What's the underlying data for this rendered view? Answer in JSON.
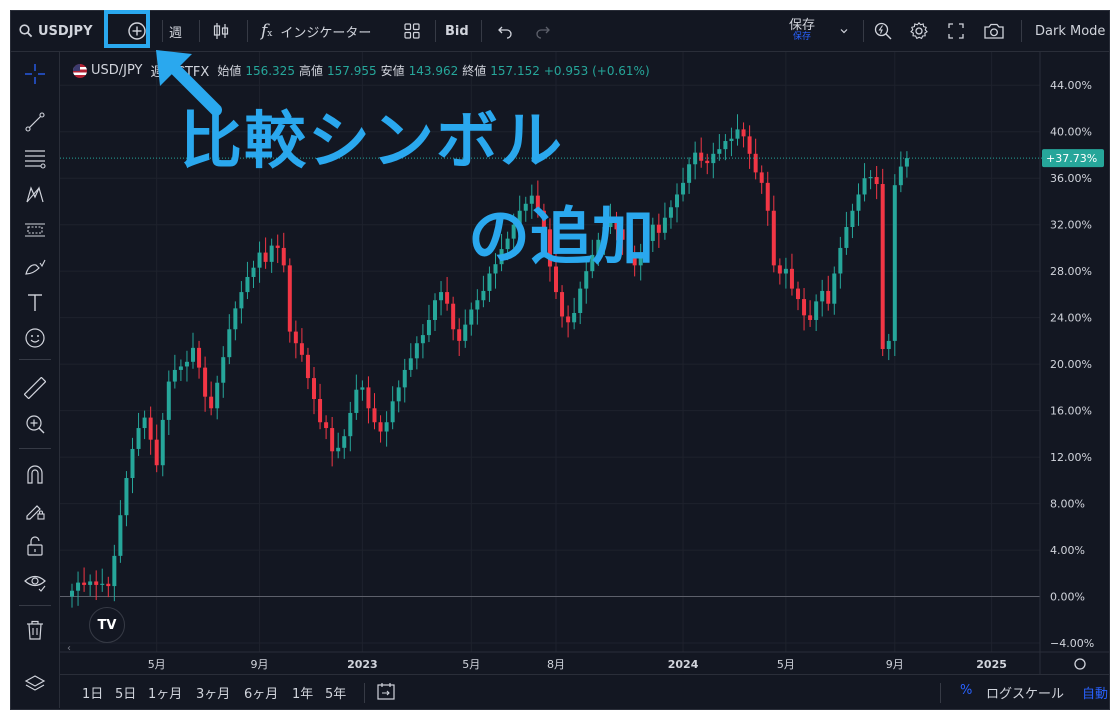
{
  "toolbar": {
    "symbol": "USDJPY",
    "interval": "週",
    "indicators_label": "インジケーター",
    "price_source": "Bid",
    "save_label": "保存",
    "save_sub": "保存",
    "theme_label": "Dark Mode"
  },
  "legend": {
    "symbol": "USD/JPY",
    "suffix": "週 · CTFX",
    "open_label": "始値",
    "open": "156.325",
    "high_label": "高値",
    "high": "157.955",
    "low_label": "安値",
    "low": "143.962",
    "close_label": "終値",
    "close": "157.152",
    "change": "+0.953 (+0.61%)"
  },
  "overlay": {
    "title": "比較シンボル",
    "subtitle": "の追加"
  },
  "bottom": {
    "ranges": [
      "1日",
      "5日",
      "1ヶ月",
      "3ヶ月",
      "6ヶ月",
      "1年",
      "5年"
    ],
    "percent": "%",
    "log_scale": "ログスケール",
    "auto": "自動"
  },
  "chart_data": {
    "type": "candlestick",
    "y_tick_labels": [
      "44.00%",
      "40.00%",
      "36.00%",
      "32.00%",
      "28.00%",
      "24.00%",
      "20.00%",
      "16.00%",
      "12.00%",
      "8.00%",
      "4.00%",
      "0.00%",
      "−4.00%"
    ],
    "y_ticks": [
      44,
      40,
      36,
      32,
      28,
      24,
      20,
      16,
      12,
      8,
      4,
      0,
      -4
    ],
    "ylim": [
      -4.6,
      46
    ],
    "x_tick_labels": [
      "5月",
      "9月",
      "2023",
      "5月",
      "8月",
      "2024",
      "5月",
      "9月",
      "2025"
    ],
    "x_tick_index": [
      14,
      31,
      48,
      66,
      80,
      101,
      118,
      136,
      152
    ],
    "last_value_label": "+37.73%",
    "last_value": 37.73,
    "up_color": "#26a69a",
    "down_color": "#f23645",
    "closes": [
      0.5,
      1.2,
      1.0,
      1.3,
      1.0,
      1.1,
      0.9,
      3.5,
      7.0,
      10.2,
      12.7,
      14.5,
      15.4,
      13.5,
      11.3,
      15.2,
      18.5,
      19.5,
      19.8,
      20.2,
      21.4,
      19.7,
      17.2,
      16.2,
      18.4,
      20.6,
      23.0,
      24.8,
      26.2,
      27.5,
      28.3,
      29.6,
      28.8,
      30.2,
      30.0,
      28.5,
      22.8,
      21.8,
      20.8,
      18.8,
      17.0,
      15.0,
      14.5,
      12.5,
      12.8,
      13.8,
      15.8,
      17.8,
      18.0,
      16.2,
      15.0,
      14.2,
      15.0,
      16.8,
      18.0,
      19.5,
      20.5,
      21.8,
      22.5,
      23.8,
      25.5,
      26.2,
      25.2,
      23.0,
      22.0,
      23.4,
      24.7,
      25.5,
      26.3,
      27.8,
      28.6,
      29.9,
      30.8,
      32.0,
      33.2,
      33.8,
      34.5,
      33.2,
      31.6,
      28.4,
      26.2,
      24.1,
      23.6,
      24.4,
      26.5,
      28.0,
      29.4,
      30.7,
      31.8,
      32.5,
      31.6,
      30.7,
      29.6,
      28.5,
      29.4,
      30.6,
      32.0,
      31.3,
      32.6,
      33.5,
      34.6,
      35.6,
      37.2,
      38.2,
      37.5,
      37.3,
      38.1,
      38.5,
      39.2,
      39.4,
      40.2,
      39.6,
      38.1,
      36.5,
      35.6,
      33.2,
      28.5,
      27.8,
      28.2,
      26.5,
      25.6,
      24.2,
      23.8,
      25.4,
      26.3,
      25.2,
      27.8,
      30.0,
      31.8,
      33.2,
      34.6,
      36.0,
      36.1,
      35.5,
      21.3,
      22.0,
      35.4,
      37.0,
      37.73
    ]
  }
}
